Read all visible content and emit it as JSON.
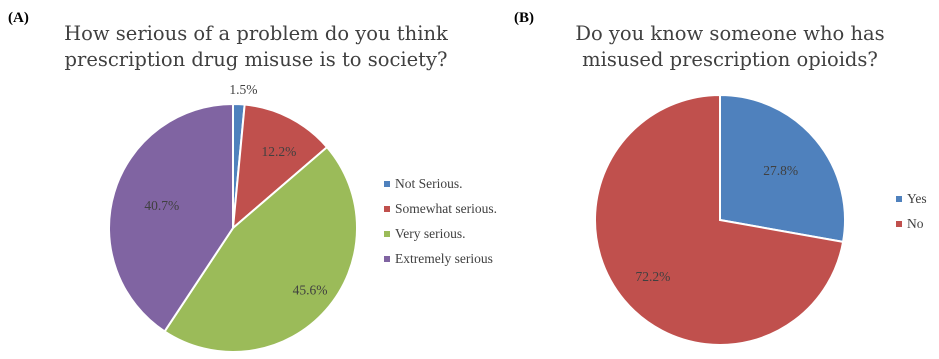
{
  "chart_data": [
    {
      "panel_label": "(A)",
      "type": "pie",
      "title_lines": [
        "How serious of a problem do you think",
        "prescription drug misuse is to society?"
      ],
      "categories": [
        "Not Serious.",
        "Somewhat serious.",
        "Very serious.",
        "Extremely serious"
      ],
      "values": [
        1.5,
        12.2,
        45.6,
        40.7
      ],
      "data_labels": [
        "1.5%",
        "12.2%",
        "45.6%",
        "40.7%"
      ],
      "colors": [
        "#4f81bd",
        "#c0504d",
        "#9bbb59",
        "#8064a2"
      ],
      "legend_position": "right"
    },
    {
      "panel_label": "(B)",
      "type": "pie",
      "title_lines": [
        "Do you know someone who has",
        "misused prescription opioids?"
      ],
      "categories": [
        "Yes",
        "No"
      ],
      "values": [
        27.8,
        72.2
      ],
      "data_labels": [
        "27.8%",
        "72.2%"
      ],
      "colors": [
        "#4f81bd",
        "#c0504d"
      ],
      "legend_position": "right"
    }
  ]
}
